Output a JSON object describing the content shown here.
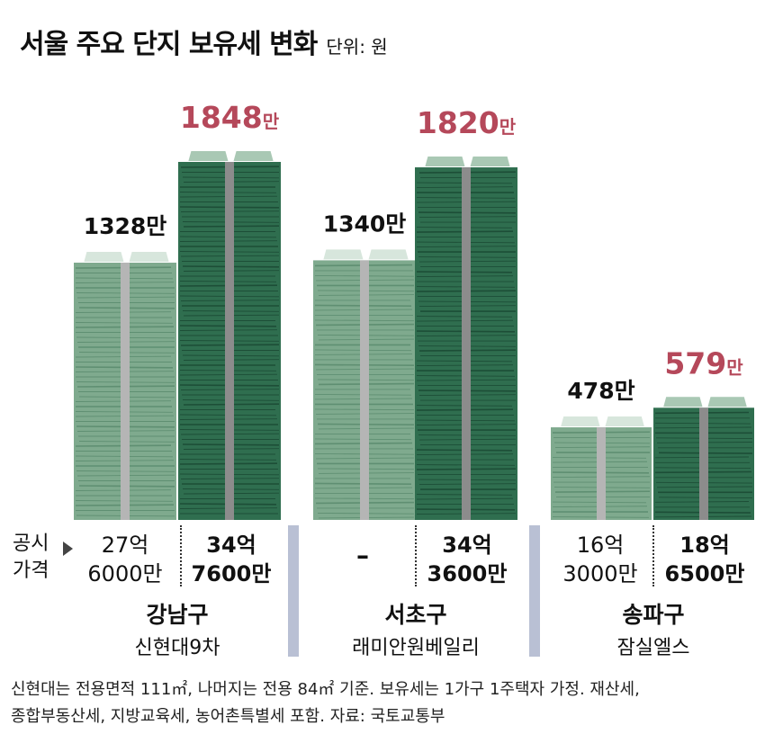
{
  "header": {
    "title": "서울 주요 단지 보유세 변화",
    "unit": "단위: 원"
  },
  "row_labels": {
    "line1": "공시",
    "line2": "가격"
  },
  "groups": [
    {
      "district": "강남구",
      "complex": "신현대9차",
      "before": {
        "tax_label": "1328만",
        "price_line1": "27억",
        "price_line2": "6000만"
      },
      "after": {
        "tax_number": "1848",
        "tax_suffix": "만",
        "price_line1": "34억",
        "price_line2": "7600만"
      }
    },
    {
      "district": "서초구",
      "complex": "래미안원베일리",
      "before": {
        "tax_label": "1340만",
        "price_line1": "–",
        "price_line2": ""
      },
      "after": {
        "tax_number": "1820",
        "tax_suffix": "만",
        "price_line1": "34억",
        "price_line2": "3600만"
      }
    },
    {
      "district": "송파구",
      "complex": "잠실엘스",
      "before": {
        "tax_label": "478만",
        "price_line1": "16억",
        "price_line2": "3000만"
      },
      "after": {
        "tax_number": "579",
        "tax_suffix": "만",
        "price_line1": "18억",
        "price_line2": "6500만"
      }
    }
  ],
  "footnote": {
    "line1": "신현대는 전용면적 111㎡, 나머지는 전용 84㎡ 기준. 보유세는 1가구 1주택자 가정. 재산세,",
    "line2": "종합부동산세, 지방교육세, 농어촌특별세 포함. 자료: 국토교통부"
  },
  "colors": {
    "before_stack": "#7faa8e",
    "before_line": "#5f8f72",
    "after_stack": "#2f6e4f",
    "after_line": "#1d4e37",
    "band": "#8c8c8c",
    "band_light": "#b5b5b5",
    "highlight": "#b5485a",
    "separator": "#b9c0d4"
  },
  "chart_data": {
    "type": "bar",
    "categories": [
      "강남구 신현대9차",
      "서초구 래미안원베일리",
      "송파구 잠실엘스"
    ],
    "series": [
      {
        "values": [
          1328,
          1340,
          478
        ]
      },
      {
        "values": [
          1848,
          1820,
          579
        ]
      }
    ],
    "ylabel": "",
    "ylim": [
      0,
      1900
    ]
  }
}
